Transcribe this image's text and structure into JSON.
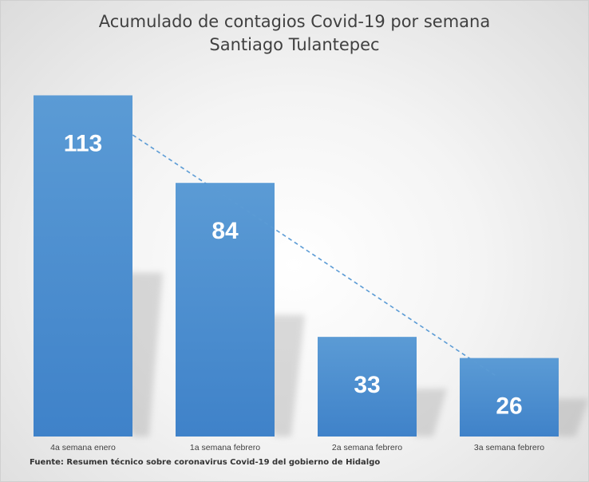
{
  "chart_data": {
    "type": "bar",
    "title": "Acumulado de contagios Covid-19 por semana",
    "subtitle": "Santiago Tulantepec",
    "categories": [
      "4a semana enero",
      "1a semana febrero",
      "2a semana febrero",
      "3a semana febrero"
    ],
    "values": [
      113,
      84,
      33,
      26
    ],
    "xlabel": "",
    "ylabel": "",
    "ylim": [
      0,
      120
    ],
    "grid": false,
    "legend": "none",
    "trendline": "linear-dashed",
    "bar_color": "#3f82c9",
    "label_color": "#ffffff",
    "trend_color": "#5b9bd5",
    "source": "Fuente: Resumen técnico sobre coronavirus Covid-19 del gobierno de Hidalgo"
  }
}
